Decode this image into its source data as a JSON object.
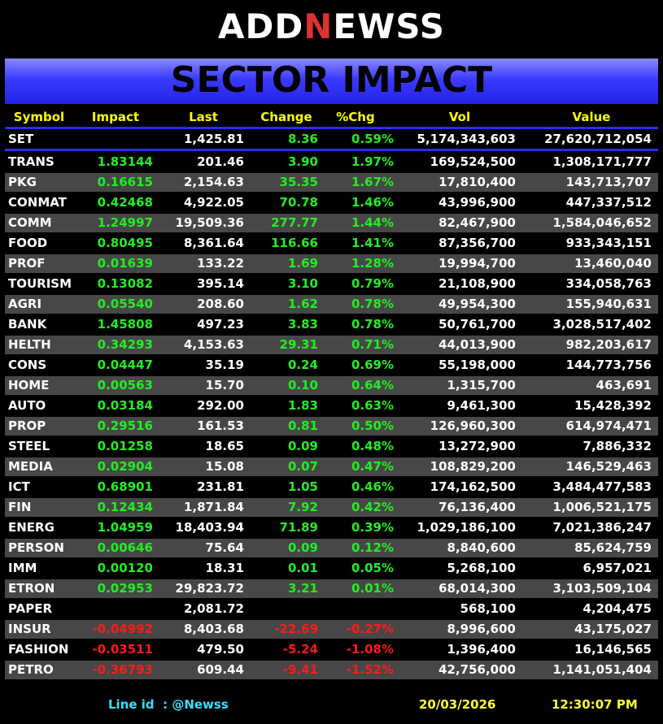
{
  "header": {
    "logo": [
      "ADD",
      "N",
      "EWSS"
    ],
    "title": "SECTOR IMPACT"
  },
  "table": {
    "columns": [
      "Symbol",
      "Impact",
      "Last",
      "Change",
      "%Chg",
      "Vol",
      "Value"
    ],
    "index": {
      "symbol": "SET",
      "last": "1,425.81",
      "change": "8.36",
      "pct": "0.59%",
      "vol": "5,174,343,603",
      "value": "27,620,712,054"
    },
    "rows": [
      {
        "symbol": "TRANS",
        "impact": "1.83144",
        "last": "201.46",
        "change": "3.90",
        "pct": "1.97%",
        "vol": "169,524,500",
        "value": "1,308,171,777"
      },
      {
        "symbol": "PKG",
        "impact": "0.16615",
        "last": "2,154.63",
        "change": "35.35",
        "pct": "1.67%",
        "vol": "17,810,400",
        "value": "143,713,707"
      },
      {
        "symbol": "CONMAT",
        "impact": "0.42468",
        "last": "4,922.05",
        "change": "70.78",
        "pct": "1.46%",
        "vol": "43,996,900",
        "value": "447,337,512"
      },
      {
        "symbol": "COMM",
        "impact": "1.24997",
        "last": "19,509.36",
        "change": "277.77",
        "pct": "1.44%",
        "vol": "82,467,900",
        "value": "1,584,046,652"
      },
      {
        "symbol": "FOOD",
        "impact": "0.80495",
        "last": "8,361.64",
        "change": "116.66",
        "pct": "1.41%",
        "vol": "87,356,700",
        "value": "933,343,151"
      },
      {
        "symbol": "PROF",
        "impact": "0.01639",
        "last": "133.22",
        "change": "1.69",
        "pct": "1.28%",
        "vol": "19,994,700",
        "value": "13,460,040"
      },
      {
        "symbol": "TOURISM",
        "impact": "0.13082",
        "last": "395.14",
        "change": "3.10",
        "pct": "0.79%",
        "vol": "21,108,900",
        "value": "334,058,763"
      },
      {
        "symbol": "AGRI",
        "impact": "0.05540",
        "last": "208.60",
        "change": "1.62",
        "pct": "0.78%",
        "vol": "49,954,300",
        "value": "155,940,631"
      },
      {
        "symbol": "BANK",
        "impact": "1.45808",
        "last": "497.23",
        "change": "3.83",
        "pct": "0.78%",
        "vol": "50,761,700",
        "value": "3,028,517,402"
      },
      {
        "symbol": "HELTH",
        "impact": "0.34293",
        "last": "4,153.63",
        "change": "29.31",
        "pct": "0.71%",
        "vol": "44,013,900",
        "value": "982,203,617"
      },
      {
        "symbol": "CONS",
        "impact": "0.04447",
        "last": "35.19",
        "change": "0.24",
        "pct": "0.69%",
        "vol": "55,198,000",
        "value": "144,773,756"
      },
      {
        "symbol": "HOME",
        "impact": "0.00563",
        "last": "15.70",
        "change": "0.10",
        "pct": "0.64%",
        "vol": "1,315,700",
        "value": "463,691"
      },
      {
        "symbol": "AUTO",
        "impact": "0.03184",
        "last": "292.00",
        "change": "1.83",
        "pct": "0.63%",
        "vol": "9,461,300",
        "value": "15,428,392"
      },
      {
        "symbol": "PROP",
        "impact": "0.29516",
        "last": "161.53",
        "change": "0.81",
        "pct": "0.50%",
        "vol": "126,960,300",
        "value": "614,974,471"
      },
      {
        "symbol": "STEEL",
        "impact": "0.01258",
        "last": "18.65",
        "change": "0.09",
        "pct": "0.48%",
        "vol": "13,272,900",
        "value": "7,886,332"
      },
      {
        "symbol": "MEDIA",
        "impact": "0.02904",
        "last": "15.08",
        "change": "0.07",
        "pct": "0.47%",
        "vol": "108,829,200",
        "value": "146,529,463"
      },
      {
        "symbol": "ICT",
        "impact": "0.68901",
        "last": "231.81",
        "change": "1.05",
        "pct": "0.46%",
        "vol": "174,162,500",
        "value": "3,484,477,583"
      },
      {
        "symbol": "FIN",
        "impact": "0.12434",
        "last": "1,871.84",
        "change": "7.92",
        "pct": "0.42%",
        "vol": "76,136,400",
        "value": "1,006,521,175"
      },
      {
        "symbol": "ENERG",
        "impact": "1.04959",
        "last": "18,403.94",
        "change": "71.89",
        "pct": "0.39%",
        "vol": "1,029,186,100",
        "value": "7,021,386,247"
      },
      {
        "symbol": "PERSON",
        "impact": "0.00646",
        "last": "75.64",
        "change": "0.09",
        "pct": "0.12%",
        "vol": "8,840,600",
        "value": "85,624,759"
      },
      {
        "symbol": "IMM",
        "impact": "0.00120",
        "last": "18.31",
        "change": "0.01",
        "pct": "0.05%",
        "vol": "5,268,100",
        "value": "6,957,021"
      },
      {
        "symbol": "ETRON",
        "impact": "0.02953",
        "last": "29,823.72",
        "change": "3.21",
        "pct": "0.01%",
        "vol": "68,014,300",
        "value": "3,103,509,104"
      },
      {
        "symbol": "PAPER",
        "last": "2,081.72",
        "vol": "568,100",
        "value": "4,204,475"
      },
      {
        "symbol": "INSUR",
        "impact": "-0.04992",
        "last": "8,403.68",
        "change": "-22.69",
        "pct": "-0.27%",
        "vol": "8,996,600",
        "value": "43,175,027"
      },
      {
        "symbol": "FASHION",
        "impact": "-0.03511",
        "last": "479.50",
        "change": "-5.24",
        "pct": "-1.08%",
        "vol": "1,396,400",
        "value": "16,146,565"
      },
      {
        "symbol": "PETRO",
        "impact": "-0.36793",
        "last": "609.44",
        "change": "-9.41",
        "pct": "-1.52%",
        "vol": "42,756,000",
        "value": "1,141,051,404"
      }
    ]
  },
  "footer": {
    "line_id": "Line id  : @Newss",
    "date": "20/03/2026",
    "time": "12:30:07 PM"
  }
}
